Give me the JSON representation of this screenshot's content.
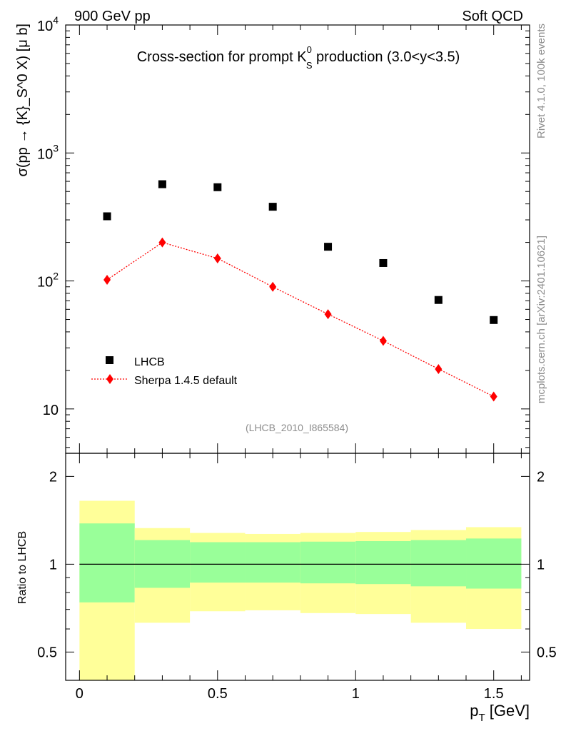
{
  "header": {
    "left": "900 GeV pp",
    "right": "Soft QCD"
  },
  "side_labels": {
    "rivet": "Rivet 4.1.0,  100k events",
    "source": "mcplots.cern.ch [arXiv:2401.10621]"
  },
  "colors": {
    "data_marker": "#000000",
    "mc_line": "#ff0000",
    "band_inner": "#99ff99",
    "band_outer": "#ffff99"
  },
  "chart_data": [
    {
      "type": "scatter",
      "panel": "main",
      "title": {
        "prefix": "Cross-section for prompt K",
        "sup": "0",
        "sub": "S",
        "suffix": " production (3.0<y<3.5)"
      },
      "ylabel": "σ(pp → {K}_S^0 X) [μ b]",
      "yscale": "log",
      "ylim": [
        4.5,
        10000
      ],
      "xlim": [
        -0.05,
        1.63
      ],
      "y_ticks": [
        {
          "value": 10,
          "base": "10",
          "exp": ""
        },
        {
          "value": 100,
          "base": "10",
          "exp": "2"
        },
        {
          "value": 1000,
          "base": "10",
          "exp": "3"
        },
        {
          "value": 10000,
          "base": "10",
          "exp": "4"
        }
      ],
      "analysis_tag": "(LHCB_2010_I865584)",
      "legend": {
        "position": "bottom-left",
        "entries": [
          "LHCB",
          "Sherpa 1.4.5 default"
        ]
      },
      "series": [
        {
          "name": "LHCB",
          "marker": "square",
          "x": [
            0.1,
            0.3,
            0.5,
            0.7,
            0.9,
            1.1,
            1.3,
            1.5
          ],
          "values": [
            320,
            570,
            540,
            380,
            185,
            138,
            71,
            49.5
          ]
        },
        {
          "name": "Sherpa 1.4.5 default",
          "marker": "diamond",
          "line": "dotted",
          "x": [
            0.1,
            0.3,
            0.5,
            0.7,
            0.9,
            1.1,
            1.3,
            1.5
          ],
          "values": [
            102,
            200,
            150,
            90,
            55,
            34,
            20.5,
            12.5
          ]
        }
      ]
    },
    {
      "type": "area",
      "panel": "ratio",
      "ylabel": "Ratio to LHCB",
      "xlabel_base": "p",
      "xlabel_sub": "T",
      "xlabel_unit": " [GeV]",
      "yscale": "log",
      "ylim": [
        0.4,
        2.4
      ],
      "y_ticks": [
        {
          "value": 0.5,
          "label": "0.5"
        },
        {
          "value": 1,
          "label": "1"
        },
        {
          "value": 2,
          "label": "2"
        }
      ],
      "x_ticks": [
        {
          "value": 0,
          "label": "0"
        },
        {
          "value": 0.5,
          "label": "0.5"
        },
        {
          "value": 1,
          "label": "1"
        },
        {
          "value": 1.5,
          "label": "1.5"
        }
      ],
      "bins": [
        {
          "lo": 0.0,
          "hi": 0.2,
          "inner": [
            0.74,
            1.38
          ],
          "outer": [
            0.3,
            1.65
          ]
        },
        {
          "lo": 0.2,
          "hi": 0.4,
          "inner": [
            0.83,
            1.21
          ],
          "outer": [
            0.63,
            1.33
          ]
        },
        {
          "lo": 0.4,
          "hi": 0.6,
          "inner": [
            0.865,
            1.19
          ],
          "outer": [
            0.69,
            1.28
          ]
        },
        {
          "lo": 0.6,
          "hi": 0.8,
          "inner": [
            0.865,
            1.19
          ],
          "outer": [
            0.695,
            1.27
          ]
        },
        {
          "lo": 0.8,
          "hi": 1.0,
          "inner": [
            0.86,
            1.195
          ],
          "outer": [
            0.68,
            1.28
          ]
        },
        {
          "lo": 1.0,
          "hi": 1.2,
          "inner": [
            0.855,
            1.2
          ],
          "outer": [
            0.675,
            1.29
          ]
        },
        {
          "lo": 1.2,
          "hi": 1.4,
          "inner": [
            0.84,
            1.21
          ],
          "outer": [
            0.63,
            1.31
          ]
        },
        {
          "lo": 1.4,
          "hi": 1.6,
          "inner": [
            0.825,
            1.225
          ],
          "outer": [
            0.6,
            1.34
          ]
        }
      ],
      "reference": 1
    }
  ]
}
